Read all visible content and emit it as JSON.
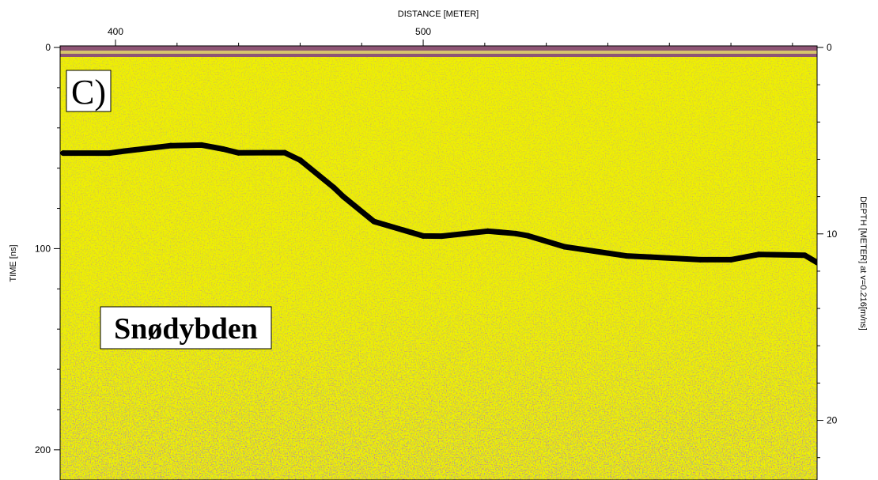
{
  "chart_data": {
    "type": "line",
    "title": "",
    "xlabel": "DISTANCE [METER]",
    "ylabel": "TIME [ns]",
    "y2label": "DEPTH [METER] at v=0.216[m/ns]",
    "xlim": [
      382,
      628
    ],
    "ylim": [
      0,
      215
    ],
    "y2lim": [
      0,
      23.2
    ],
    "x_ticks": [
      400,
      500
    ],
    "y_ticks": [
      0,
      100,
      200
    ],
    "y2_ticks": [
      0,
      10,
      20
    ],
    "grid": false,
    "legend": "none",
    "panel_label": "C)",
    "annotations": [
      "Snødybden"
    ],
    "background": "GPR radargram (yellow with purple/green noise)",
    "colors": {
      "line": "#000000",
      "radargram": "#f0f000",
      "noise_dark": "#7a2c7a",
      "noise_green": "#4b9a3c"
    },
    "series": [
      {
        "values_x": [
          383,
          398,
          403,
          418,
          428,
          435,
          440,
          448,
          455,
          460,
          471,
          474,
          484,
          500,
          506,
          521,
          530,
          534,
          546,
          566,
          574,
          590,
          600,
          609,
          624,
          628
        ],
        "values_y": [
          52.5,
          52.5,
          51.5,
          48.8,
          48.5,
          50.5,
          52.4,
          52.3,
          52.3,
          56,
          69.7,
          74.1,
          86.5,
          93.7,
          93.8,
          91.3,
          92.5,
          93.6,
          99.1,
          103.6,
          104.2,
          105.5,
          105.5,
          102.9,
          103.3,
          106.9
        ]
      }
    ]
  }
}
